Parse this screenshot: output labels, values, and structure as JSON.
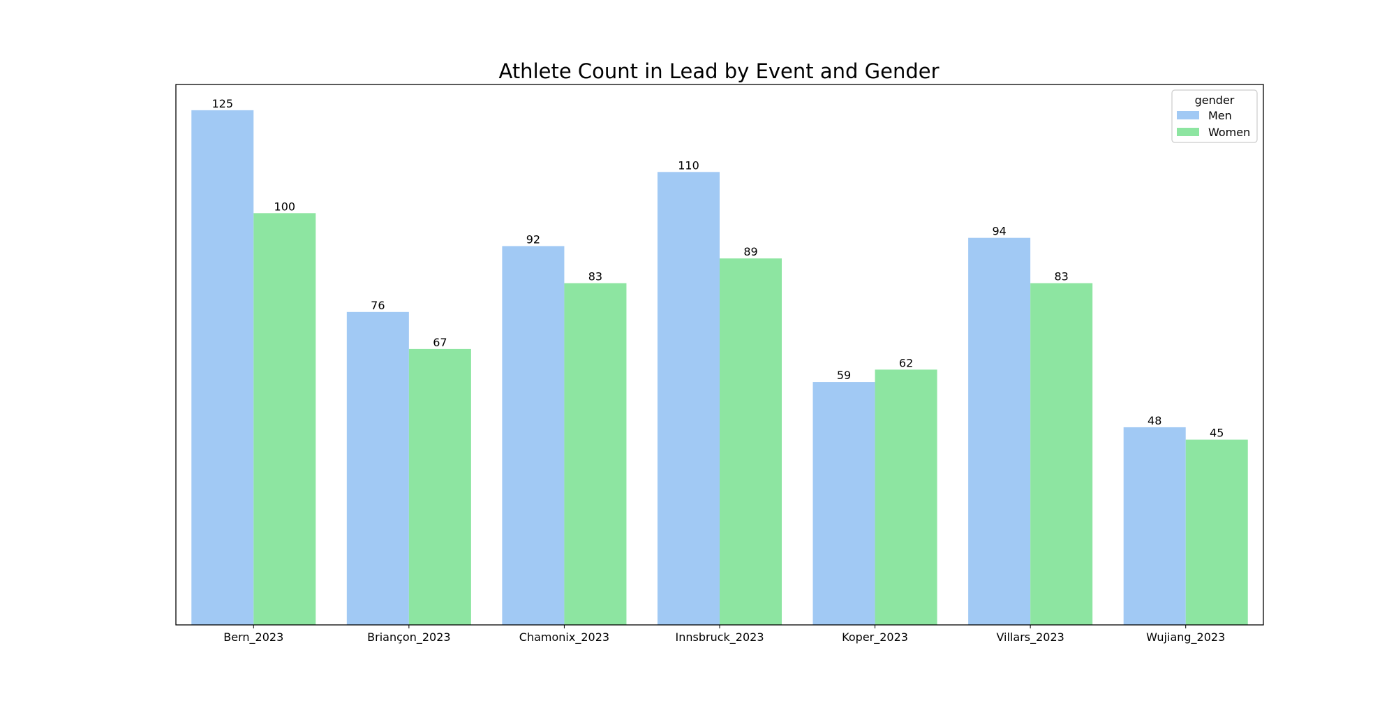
{
  "chart_data": {
    "type": "bar",
    "title": "Athlete Count in Lead by Event and Gender",
    "xlabel": "",
    "ylabel": "",
    "categories": [
      "Bern_2023",
      "Briançon_2023",
      "Chamonix_2023",
      "Innsbruck_2023",
      "Koper_2023",
      "Villars_2023",
      "Wujiang_2023"
    ],
    "series": [
      {
        "name": "Men",
        "color": "#a1c9f4",
        "values": [
          125,
          76,
          92,
          110,
          59,
          94,
          48
        ]
      },
      {
        "name": "Women",
        "color": "#8de5a1",
        "values": [
          100,
          67,
          83,
          89,
          62,
          83,
          45
        ]
      }
    ],
    "ylim": [
      0,
      131.25
    ],
    "y_axis_ticks_visible": false,
    "grid": false,
    "data_labels": true,
    "legend": {
      "title": "gender",
      "position": "top-right"
    }
  }
}
